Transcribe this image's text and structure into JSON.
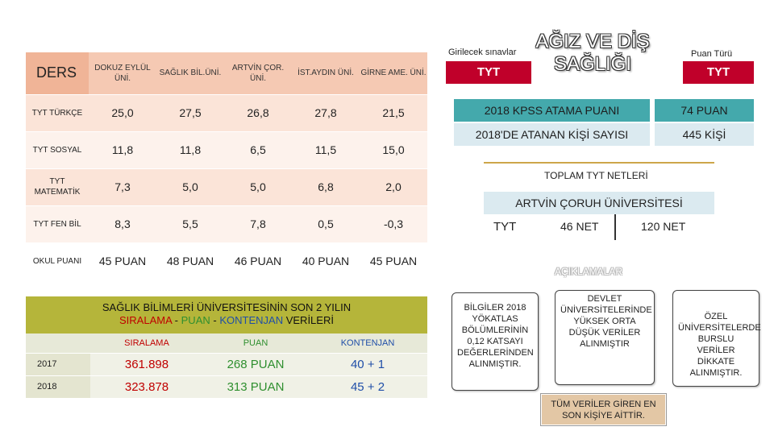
{
  "main_table": {
    "corner_label": "DERS",
    "columns": [
      "DOKUZ EYLÜL ÜNİ.",
      "SAĞLIK BİL.ÜNİ.",
      "ARTVİN ÇOR. ÜNİ.",
      "İST.AYDIN ÜNİ.",
      "GİRNE AME. ÜNİ."
    ],
    "rows": [
      {
        "label": "TYT TÜRKÇE",
        "values": [
          "25,0",
          "27,5",
          "26,8",
          "27,8",
          "21,5"
        ]
      },
      {
        "label": "TYT SOSYAL",
        "values": [
          "11,8",
          "11,8",
          "6,5",
          "11,5",
          "15,0"
        ]
      },
      {
        "label": "TYT MATEMATİK",
        "values": [
          "7,3",
          "5,0",
          "5,0",
          "6,8",
          "2,0"
        ]
      },
      {
        "label": "TYT FEN BİL",
        "values": [
          "8,3",
          "5,5",
          "7,8",
          "0,5",
          "-0,3"
        ]
      },
      {
        "label": "OKUL PUANI",
        "values": [
          "45 PUAN",
          "48 PUAN",
          "46 PUAN",
          "40 PUAN",
          "45 PUAN"
        ]
      }
    ]
  },
  "ranking": {
    "title_line1": "SAĞLIK BİLİMLERİ ÜNİVERSİTESİNİN SON 2 YILIN",
    "title_sıralama": "SIRALAMA",
    "title_puan": "PUAN",
    "title_kontenjan": "KONTENJAN",
    "title_veriler": "VERİLERİ",
    "title_sep": "-",
    "headers": [
      "SIRALAMA",
      "PUAN",
      "KONTENJAN"
    ],
    "rows": [
      {
        "year": "2017",
        "siralama": "361.898",
        "puan": "268 PUAN",
        "kontenjan": "40 + 1"
      },
      {
        "year": "2018",
        "siralama": "323.878",
        "puan": "313 PUAN",
        "kontenjan": "45 + 2"
      }
    ]
  },
  "exam": {
    "girilecek_label": "Girilecek sınavlar",
    "girilecek_value": "TYT",
    "department": "AĞIZ VE DİŞ SAĞLIĞI",
    "puan_turu_label": "Puan Türü",
    "puan_turu_value": "TYT"
  },
  "kpss": {
    "row1_label": "2018 KPSS ATAMA PUANI",
    "row1_value": "74 PUAN",
    "row2_label": "2018'DE ATANAN KİŞİ SAYISI",
    "row2_value": "445 KİŞİ"
  },
  "nets": {
    "title": "TOPLAM TYT NETLERİ",
    "university": "ARTVİN ÇORUH ÜNİVERSİTESİ",
    "label": "TYT",
    "net_value": "46 NET",
    "max_value": "120 NET"
  },
  "notes": {
    "title": "AÇIKLAMALAR",
    "note1": "BİLGİLER 2018 YÖKATLAS BÖLÜMLERİNİN 0,12 KATSAYI DEĞERLERİNDEN ALINMIŞTIR.",
    "note2": "DEVLET ÜNİVERSİTELERİNDE YÜKSEK ORTA DÜŞÜK VERİLER ALINMIŞTIR",
    "note3": "ÖZEL ÜNİVERSİTELERDE BURSLU VERİLER DİKKATE ALINMIŞTIR.",
    "note4": "TÜM VERİLER GİREN EN SON KİŞİYE AİTTİR."
  },
  "colors": {
    "header_peach": "#f5c9b3",
    "tyt_red": "#c0002a",
    "teal": "#44a9ac",
    "olive": "#b5b53a",
    "note_tan": "#e3c7a5"
  }
}
